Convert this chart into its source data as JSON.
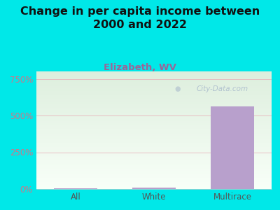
{
  "title": "Change in per capita income between\n2000 and 2022",
  "subtitle": "Elizabeth, WV",
  "categories": [
    "All",
    "White",
    "Multirace"
  ],
  "values": [
    5,
    8,
    560
  ],
  "bar_color": "#b8a0cc",
  "background_color": "#00e8e8",
  "plot_bg_top": "#ddeedd",
  "plot_bg_bottom": "#f8fff8",
  "grid_color": "#e8b0b8",
  "title_color": "#111111",
  "subtitle_color": "#996699",
  "ytick_color": "#cc7788",
  "xtick_color": "#555555",
  "yticks": [
    0,
    250,
    500,
    750
  ],
  "ylim": [
    0,
    800
  ],
  "watermark": "City-Data.com",
  "watermark_color": "#aabbcc",
  "title_fontsize": 11.5,
  "subtitle_fontsize": 9.5
}
